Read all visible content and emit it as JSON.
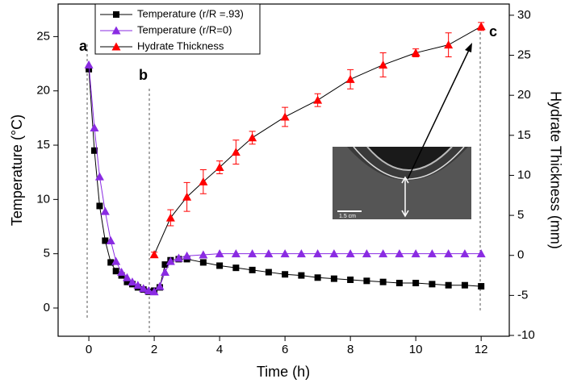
{
  "chart_data": {
    "type": "line",
    "xlabel": "Time (h)",
    "ylabel": "Temperature (°C)",
    "y2label": "Hydrate Thickness (mm)",
    "xlim": [
      -0.94,
      12.86
    ],
    "xticks": [
      0,
      2,
      4,
      6,
      8,
      10,
      12
    ],
    "ylim": [
      -2.6,
      28.0
    ],
    "yticks": [
      0,
      5,
      10,
      15,
      20,
      25
    ],
    "y2lim": [
      -10.1,
      31.4
    ],
    "y2ticks": [
      -10,
      -5,
      0,
      5,
      10,
      15,
      20,
      25,
      30
    ],
    "annotations": [
      "a",
      "b",
      "c"
    ],
    "inset_label": "1.5 cm",
    "series": [
      {
        "name": "Temperature (r/R =.93)",
        "color": "#000000",
        "marker": "square",
        "x": [
          0,
          0.17,
          0.33,
          0.5,
          0.67,
          0.83,
          1.0,
          1.17,
          1.33,
          1.5,
          1.67,
          1.83,
          2.0,
          2.17,
          2.33,
          2.5,
          2.75,
          3,
          3.5,
          4,
          4.5,
          5,
          5.5,
          6,
          6.5,
          7,
          7.5,
          8,
          8.5,
          9,
          9.5,
          10,
          10.5,
          11,
          11.5,
          12
        ],
        "values": [
          22,
          14.5,
          9.4,
          6.2,
          4.2,
          3.4,
          3.0,
          2.4,
          2.2,
          1.9,
          1.7,
          1.5,
          1.6,
          1.9,
          4.0,
          4.4,
          4.5,
          4.5,
          4.2,
          3.9,
          3.7,
          3.5,
          3.3,
          3.1,
          3.0,
          2.8,
          2.7,
          2.6,
          2.5,
          2.4,
          2.3,
          2.3,
          2.2,
          2.1,
          2.1,
          2.0
        ]
      },
      {
        "name": "Temperature (r/R=0)",
        "color": "#8a2be2",
        "marker": "triangle",
        "x": [
          0,
          0.17,
          0.33,
          0.5,
          0.67,
          0.83,
          1.0,
          1.17,
          1.33,
          1.5,
          1.67,
          1.83,
          2.0,
          2.17,
          2.33,
          2.5,
          2.75,
          3,
          3.5,
          4,
          4.5,
          5,
          5.5,
          6,
          6.5,
          7,
          7.5,
          8,
          8.5,
          9,
          9.5,
          10,
          10.5,
          11,
          11.5,
          12
        ],
        "values": [
          22.4,
          16.6,
          12.1,
          8.9,
          6.2,
          4.3,
          3.3,
          2.8,
          2.4,
          2.1,
          1.8,
          1.6,
          1.5,
          2.0,
          3.3,
          4.3,
          4.6,
          4.8,
          4.9,
          5.0,
          5.0,
          5.0,
          5.0,
          5.0,
          5.0,
          5.0,
          5.0,
          5.0,
          5.0,
          5.0,
          5.0,
          5.0,
          5.0,
          5.0,
          5.0,
          5.0
        ]
      },
      {
        "name": "Hydrate Thickness",
        "color": "#ff0000",
        "marker": "triangle",
        "axis": "y2",
        "x": [
          2,
          2.5,
          3,
          3.5,
          4,
          4.5,
          5,
          6,
          7,
          8,
          9,
          10,
          11,
          12
        ],
        "values": [
          0.1,
          4.7,
          7.3,
          9.2,
          11.0,
          12.9,
          14.7,
          17.3,
          19.4,
          22.0,
          23.8,
          25.3,
          26.3,
          28.6
        ],
        "errors": [
          0.3,
          1.0,
          1.8,
          1.5,
          0.8,
          1.5,
          0.8,
          1.2,
          0.8,
          1.2,
          1.5,
          0.5,
          1.5,
          0.5
        ]
      }
    ]
  }
}
